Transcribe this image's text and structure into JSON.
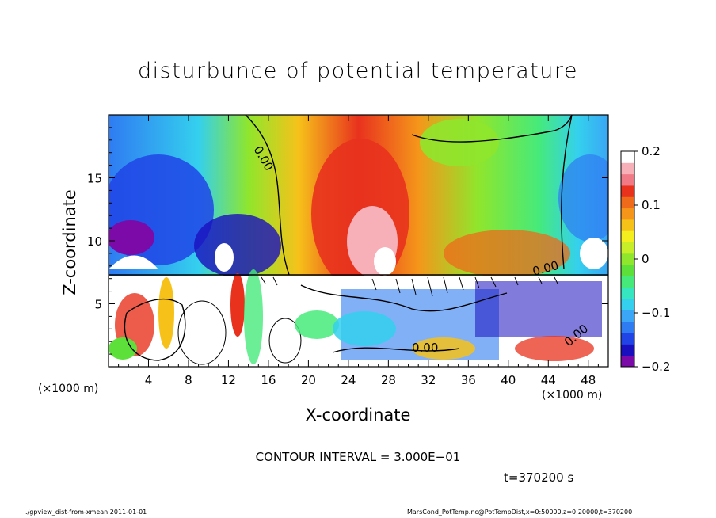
{
  "chart_data": {
    "type": "heatmap",
    "title": "disturbunce of potential temperature",
    "xlabel": "X-coordinate",
    "ylabel": "Z-coordinate",
    "x_unit_label": "(×1000 m)",
    "xlim": [
      0,
      50
    ],
    "ylim": [
      0,
      20
    ],
    "x_ticks": [
      4,
      8,
      12,
      16,
      20,
      24,
      28,
      32,
      36,
      40,
      44,
      48
    ],
    "y_ticks": [
      5,
      10,
      15
    ],
    "colorbar": {
      "min": -0.2,
      "max": 0.2,
      "ticks": [
        {
          "value": 0.2,
          "label": "0.2"
        },
        {
          "value": 0.1,
          "label": "0.1"
        },
        {
          "value": 0,
          "label": "0"
        },
        {
          "value": -0.1,
          "label": "−0.1"
        },
        {
          "value": -0.2,
          "label": "−0.2"
        }
      ],
      "colors": [
        "#7b0aa8",
        "#1a0fbe",
        "#2044e6",
        "#2f7bf2",
        "#3aa6f5",
        "#34d0ee",
        "#35e6c0",
        "#46ea7a",
        "#5de03a",
        "#8fe62c",
        "#c8ee2a",
        "#f4ee1e",
        "#f6c21a",
        "#f5961a",
        "#ef6a1b",
        "#e8321e",
        "#f07a86",
        "#f7b0b8",
        "#ffffff"
      ]
    },
    "contour_labels": [
      "0.00",
      "0.00",
      "0.00",
      "0.00"
    ],
    "grid": false
  },
  "annotations": {
    "contour_interval": "CONTOUR INTERVAL = 3.000E−01",
    "time": "t=370200 s",
    "footer_left": "./gpview_dist-from-xmean   2011-01-01",
    "footer_right": "MarsCond_PotTemp.nc@PotTempDist,x=0:50000,z=0:20000,t=370200"
  }
}
